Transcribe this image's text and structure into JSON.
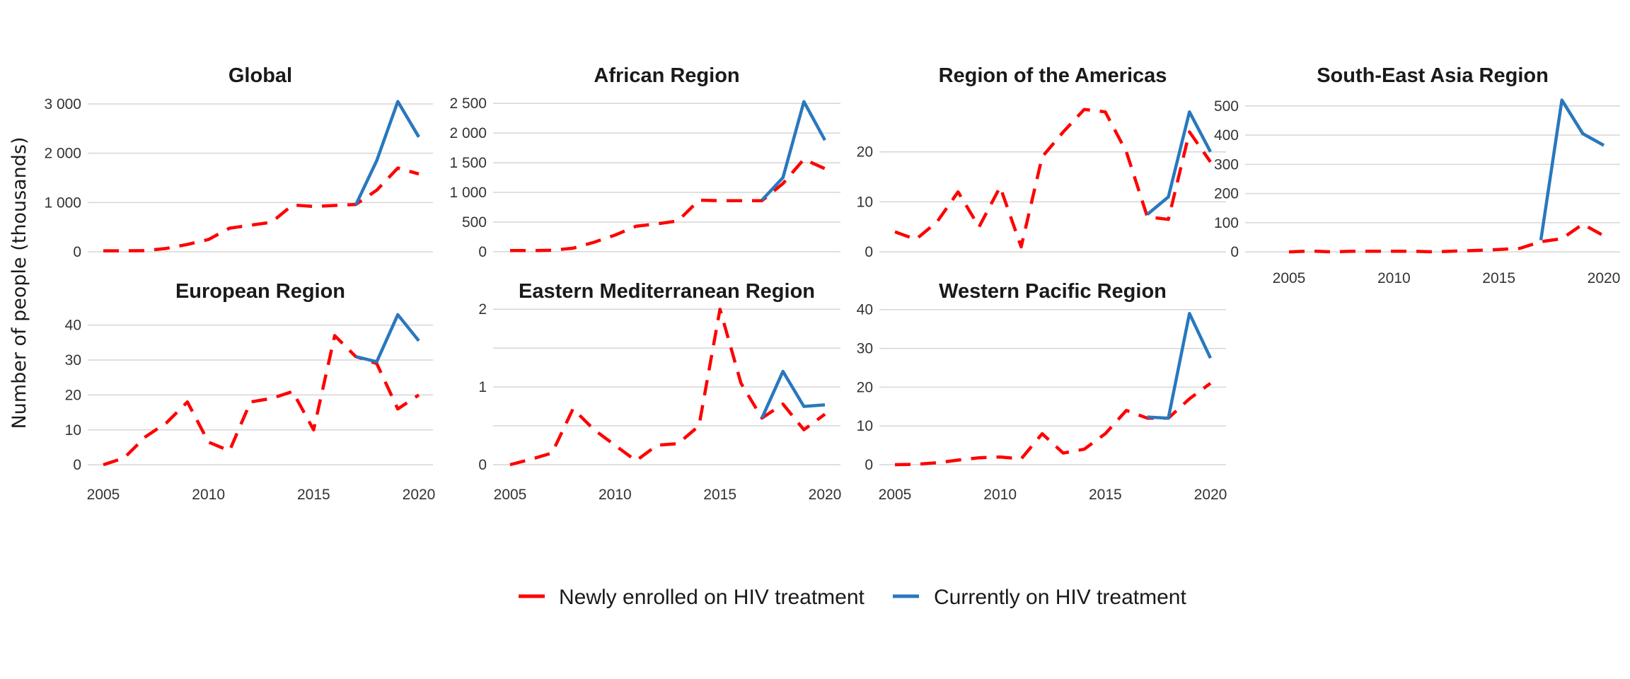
{
  "chart_data": {
    "type": "line",
    "ylabel": "Number of people (thousands)",
    "x_ticks": [
      2005,
      2010,
      2015,
      2020
    ],
    "xlim": [
      2005,
      2020
    ],
    "grid": "horizontal",
    "legend_position": "bottom",
    "colors": {
      "newly": "#ff0000",
      "current": "#2878be"
    },
    "legend": [
      {
        "key": "newly",
        "label": "Newly enrolled on HIV treatment",
        "style": "dashed"
      },
      {
        "key": "current",
        "label": "Currently on HIV treatment",
        "style": "solid"
      }
    ],
    "panels": [
      {
        "title": "Global",
        "ylim": [
          -143,
          3143
        ],
        "y_ticks": [
          0,
          1000,
          2000,
          3000
        ],
        "y_tick_labels": [
          "0",
          "1 000",
          "2 000",
          "3 000"
        ],
        "gridlines": [
          0,
          1000,
          2000,
          3000
        ],
        "show_x_axis": false,
        "newly": {
          "x": [
            2005,
            2006,
            2007,
            2008,
            2009,
            2010,
            2011,
            2012,
            2013,
            2014,
            2015,
            2016,
            2017,
            2018,
            2019,
            2020
          ],
          "y": [
            20,
            20,
            25,
            70,
            150,
            250,
            480,
            540,
            600,
            950,
            920,
            940,
            960,
            1250,
            1700,
            1580
          ]
        },
        "current": {
          "x": [
            2017,
            2018,
            2019,
            2020
          ],
          "y": [
            950,
            1850,
            3050,
            2330
          ]
        }
      },
      {
        "title": "African Region",
        "ylim": [
          -120,
          2610
        ],
        "y_ticks": [
          0,
          500,
          1000,
          1500,
          2000,
          2500
        ],
        "y_tick_labels": [
          "0",
          "500",
          "1 000",
          "1 500",
          "2 000",
          "2 500"
        ],
        "gridlines": [
          0,
          500,
          1000,
          1500,
          2000,
          2500
        ],
        "show_x_axis": false,
        "newly": {
          "x": [
            2005,
            2006,
            2007,
            2008,
            2009,
            2010,
            2011,
            2012,
            2013,
            2014,
            2015,
            2016,
            2017,
            2018,
            2019,
            2020
          ],
          "y": [
            20,
            20,
            25,
            60,
            160,
            280,
            430,
            470,
            520,
            870,
            860,
            860,
            860,
            1150,
            1560,
            1400
          ]
        },
        "current": {
          "x": [
            2017,
            2018,
            2019,
            2020
          ],
          "y": [
            870,
            1250,
            2530,
            1880
          ]
        }
      },
      {
        "title": "Region of the Americas",
        "ylim": [
          -1.4,
          31
        ],
        "y_ticks": [
          0,
          10,
          20
        ],
        "y_tick_labels": [
          "0",
          "10",
          "20"
        ],
        "gridlines": [
          0,
          10,
          20
        ],
        "show_x_axis": false,
        "newly": {
          "x": [
            2005,
            2006,
            2007,
            2008,
            2009,
            2010,
            2011,
            2012,
            2013,
            2014,
            2015,
            2016,
            2017,
            2018,
            2019,
            2020
          ],
          "y": [
            4,
            2.5,
            6,
            12,
            5,
            13,
            1,
            19,
            24,
            28.5,
            28,
            20,
            7,
            6.5,
            24,
            18
          ]
        },
        "current": {
          "x": [
            2017,
            2018,
            2019,
            2020
          ],
          "y": [
            7.5,
            11,
            28,
            20
          ]
        }
      },
      {
        "title": "South-East Asia Region",
        "ylim": [
          -24,
          531
        ],
        "y_ticks": [
          0,
          100,
          200,
          300,
          400,
          500
        ],
        "y_tick_labels": [
          "0",
          "100",
          "200",
          "300",
          "400",
          "500"
        ],
        "gridlines": [
          0,
          100,
          200,
          300,
          400,
          500
        ],
        "show_x_axis": true,
        "newly": {
          "x": [
            2005,
            2006,
            2007,
            2008,
            2009,
            2010,
            2011,
            2012,
            2013,
            2014,
            2015,
            2016,
            2017,
            2018,
            2019,
            2020
          ],
          "y": [
            0,
            3,
            0,
            2,
            2,
            2,
            2,
            0,
            3,
            5,
            8,
            12,
            35,
            45,
            95,
            55
          ]
        },
        "current": {
          "x": [
            2017,
            2018,
            2019,
            2020
          ],
          "y": [
            40,
            520,
            405,
            365
          ]
        }
      },
      {
        "title": "European Region",
        "ylim": [
          -2.2,
          45
        ],
        "y_ticks": [
          0,
          10,
          20,
          30,
          40
        ],
        "y_tick_labels": [
          "0",
          "10",
          "20",
          "30",
          "40"
        ],
        "gridlines": [
          0,
          10,
          20,
          30,
          40
        ],
        "show_x_axis": true,
        "newly": {
          "x": [
            2005,
            2006,
            2007,
            2008,
            2009,
            2010,
            2011,
            2012,
            2013,
            2014,
            2015,
            2016,
            2017,
            2018,
            2019,
            2020
          ],
          "y": [
            0,
            2,
            8,
            12,
            18,
            6.5,
            4,
            18,
            19,
            21,
            10,
            37,
            31,
            29,
            16,
            20
          ]
        },
        "current": {
          "x": [
            2017,
            2018,
            2019,
            2020
          ],
          "y": [
            31,
            29.5,
            43,
            35.5
          ]
        }
      },
      {
        "title": "Eastern Mediterranean Region",
        "ylim": [
          -0.1,
          2.02
        ],
        "y_ticks": [
          0,
          1,
          2
        ],
        "y_tick_labels": [
          "0",
          "1",
          "2"
        ],
        "gridlines": [
          0,
          0.5,
          1,
          1.5,
          2
        ],
        "show_x_axis": true,
        "newly": {
          "x": [
            2005,
            2006,
            2007,
            2008,
            2009,
            2010,
            2011,
            2012,
            2013,
            2014,
            2015,
            2016,
            2017,
            2018,
            2019,
            2020
          ],
          "y": [
            0,
            0.07,
            0.15,
            0.72,
            0.45,
            0.25,
            0.05,
            0.25,
            0.27,
            0.5,
            2.0,
            1.05,
            0.6,
            0.78,
            0.45,
            0.65
          ]
        },
        "current": {
          "x": [
            2017,
            2018,
            2019,
            2020
          ],
          "y": [
            0.6,
            1.2,
            0.75,
            0.77
          ]
        }
      },
      {
        "title": "Western Pacific Region",
        "ylim": [
          -2.0,
          40.5
        ],
        "y_ticks": [
          0,
          10,
          20,
          30,
          40
        ],
        "y_tick_labels": [
          "0",
          "10",
          "20",
          "30",
          "40"
        ],
        "gridlines": [
          0,
          10,
          20,
          30,
          40
        ],
        "show_x_axis": true,
        "newly": {
          "x": [
            2005,
            2006,
            2007,
            2008,
            2009,
            2010,
            2011,
            2012,
            2013,
            2014,
            2015,
            2016,
            2017,
            2018,
            2019,
            2020
          ],
          "y": [
            0,
            0.1,
            0.5,
            1.2,
            1.8,
            2,
            1.5,
            8,
            3,
            4,
            8,
            14,
            12,
            12,
            17,
            21
          ]
        },
        "current": {
          "x": [
            2017,
            2018,
            2019,
            2020
          ],
          "y": [
            12.3,
            12,
            39,
            27.5
          ]
        }
      }
    ]
  }
}
